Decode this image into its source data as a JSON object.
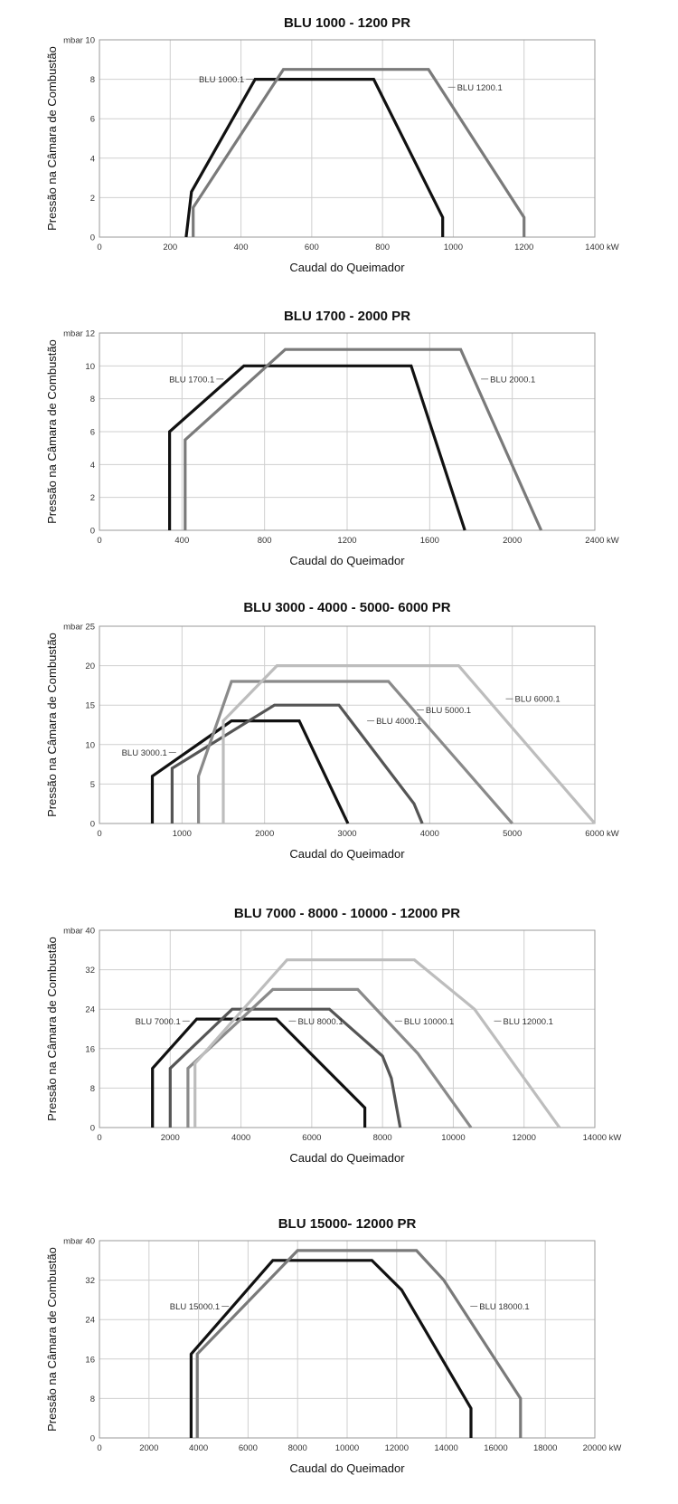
{
  "chart_data": [
    {
      "type": "line",
      "title": "BLU 1000 - 1200 PR",
      "xlabel": "Caudal do Queimador",
      "ylabel": "Pressão na Câmara de Combustão",
      "y_unit": "mbar",
      "x_unit": "kW",
      "xlim": [
        0,
        1400
      ],
      "ylim": [
        0,
        10
      ],
      "xticks": [
        0,
        200,
        400,
        600,
        800,
        1000,
        1200,
        1400
      ],
      "yticks": [
        0,
        2,
        4,
        6,
        8,
        10
      ],
      "grid": true,
      "series": [
        {
          "name": "BLU 1000.1",
          "color": "#111111",
          "label_side": "left",
          "label_at": [
            440,
            8
          ],
          "points": [
            [
              245,
              0
            ],
            [
              260,
              2.3
            ],
            [
              440,
              8
            ],
            [
              775,
              8
            ],
            [
              970,
              1
            ],
            [
              970,
              0
            ]
          ]
        },
        {
          "name": "BLU 1200.1",
          "color": "#7a7a7a",
          "label_side": "right",
          "label_at": [
            980,
            7.6
          ],
          "points": [
            [
              265,
              0
            ],
            [
              265,
              1.5
            ],
            [
              520,
              8.5
            ],
            [
              930,
              8.5
            ],
            [
              1200,
              1
            ],
            [
              1200,
              0
            ]
          ]
        }
      ]
    },
    {
      "type": "line",
      "title": "BLU 1700 - 2000 PR",
      "xlabel": "Caudal do Queimador",
      "ylabel": "Pressão na Câmara de Combustão",
      "y_unit": "mbar",
      "x_unit": "kW",
      "xlim": [
        0,
        2400
      ],
      "ylim": [
        0,
        12
      ],
      "xticks": [
        0,
        400,
        800,
        1200,
        1600,
        2000,
        2400
      ],
      "yticks": [
        0,
        2,
        4,
        6,
        8,
        10,
        12
      ],
      "grid": true,
      "series": [
        {
          "name": "BLU 1700.1",
          "color": "#111111",
          "label_side": "left",
          "label_at": [
            610,
            9.2
          ],
          "points": [
            [
              340,
              0
            ],
            [
              340,
              6
            ],
            [
              700,
              10
            ],
            [
              1510,
              10
            ],
            [
              1770,
              0
            ]
          ]
        },
        {
          "name": "BLU 2000.1",
          "color": "#7a7a7a",
          "label_side": "right",
          "label_at": [
            1840,
            9.2
          ],
          "points": [
            [
              415,
              0
            ],
            [
              415,
              5.5
            ],
            [
              900,
              11
            ],
            [
              1750,
              11
            ],
            [
              2140,
              0
            ]
          ]
        }
      ]
    },
    {
      "type": "line",
      "title": "BLU 3000 - 4000 - 5000- 6000 PR",
      "xlabel": "Caudal do Queimador",
      "ylabel": "Pressão na Câmara de Combustão",
      "y_unit": "mbar",
      "x_unit": "kW",
      "xlim": [
        0,
        6000
      ],
      "ylim": [
        0,
        25
      ],
      "xticks": [
        0,
        1000,
        2000,
        3000,
        4000,
        5000,
        6000
      ],
      "yticks": [
        0,
        5,
        10,
        15,
        20,
        25
      ],
      "grid": true,
      "series": [
        {
          "name": "BLU 3000.1",
          "color": "#111111",
          "label_side": "left",
          "label_at": [
            950,
            9
          ],
          "points": [
            [
              640,
              0
            ],
            [
              640,
              6
            ],
            [
              1600,
              13
            ],
            [
              2420,
              13
            ],
            [
              3010,
              0
            ]
          ]
        },
        {
          "name": "BLU 4000.1",
          "color": "#555555",
          "label_side": "right",
          "label_at": [
            3220,
            13
          ],
          "points": [
            [
              880,
              0
            ],
            [
              880,
              7
            ],
            [
              2120,
              15
            ],
            [
              2900,
              15
            ],
            [
              3810,
              2.5
            ],
            [
              3910,
              0
            ]
          ]
        },
        {
          "name": "BLU 5000.1",
          "color": "#8a8a8a",
          "label_side": "right",
          "label_at": [
            3820,
            14.4
          ],
          "points": [
            [
              1200,
              0
            ],
            [
              1200,
              6
            ],
            [
              1600,
              18
            ],
            [
              3500,
              18
            ],
            [
              5000,
              0
            ]
          ]
        },
        {
          "name": "BLU 6000.1",
          "color": "#bdbdbd",
          "label_side": "right",
          "label_at": [
            4900,
            15.8
          ],
          "points": [
            [
              1500,
              0
            ],
            [
              1500,
              13
            ],
            [
              2150,
              20
            ],
            [
              4350,
              20
            ],
            [
              6000,
              0
            ]
          ]
        }
      ]
    },
    {
      "type": "line",
      "title": "BLU 7000 - 8000 - 10000 - 12000 PR",
      "xlabel": "Caudal do Queimador",
      "ylabel": "Pressão na Câmara de Combustão",
      "y_unit": "mbar",
      "x_unit": "kW",
      "xlim": [
        0,
        14000
      ],
      "ylim": [
        0,
        40
      ],
      "xticks": [
        0,
        2000,
        4000,
        6000,
        8000,
        10000,
        12000,
        14000
      ],
      "yticks": [
        0,
        8,
        16,
        24,
        32,
        40
      ],
      "grid": true,
      "series": [
        {
          "name": "BLU 7000.1",
          "color": "#111111",
          "label_side": "left",
          "label_at": [
            2600,
            21.6
          ],
          "points": [
            [
              1500,
              0
            ],
            [
              1500,
              12
            ],
            [
              2750,
              22
            ],
            [
              5000,
              22
            ],
            [
              7500,
              4
            ],
            [
              7500,
              0
            ]
          ]
        },
        {
          "name": "BLU 8000.1",
          "color": "#555555",
          "label_side": "right",
          "label_at": [
            5300,
            21.6
          ],
          "points": [
            [
              2000,
              0
            ],
            [
              2000,
              12
            ],
            [
              3750,
              24
            ],
            [
              6500,
              24
            ],
            [
              8000,
              14.5
            ],
            [
              8250,
              10
            ],
            [
              8500,
              0
            ]
          ]
        },
        {
          "name": "BLU 10000.1",
          "color": "#8a8a8a",
          "label_side": "right",
          "label_at": [
            8300,
            21.6
          ],
          "points": [
            [
              2500,
              0
            ],
            [
              2500,
              12
            ],
            [
              4900,
              28
            ],
            [
              7300,
              28
            ],
            [
              9000,
              15
            ],
            [
              10500,
              0
            ]
          ]
        },
        {
          "name": "BLU 12000.1",
          "color": "#bdbdbd",
          "label_side": "right",
          "label_at": [
            11100,
            21.6
          ],
          "points": [
            [
              2700,
              0
            ],
            [
              2700,
              13
            ],
            [
              5300,
              34
            ],
            [
              8900,
              34
            ],
            [
              10600,
              24
            ],
            [
              13000,
              0
            ]
          ]
        }
      ]
    },
    {
      "type": "line",
      "title": "BLU 15000- 12000 PR",
      "xlabel": "Caudal do Queimador",
      "ylabel": "Pressão na Câmara de Combustão",
      "y_unit": "mbar",
      "x_unit": "kW",
      "xlim": [
        0,
        20000
      ],
      "ylim": [
        0,
        40
      ],
      "xticks": [
        0,
        2000,
        4000,
        6000,
        8000,
        10000,
        12000,
        14000,
        16000,
        18000,
        20000
      ],
      "yticks": [
        0,
        8,
        16,
        24,
        32,
        40
      ],
      "grid": true,
      "series": [
        {
          "name": "BLU 15000.1",
          "color": "#111111",
          "label_side": "left",
          "label_at": [
            5300,
            26.7
          ],
          "points": [
            [
              3700,
              0
            ],
            [
              3700,
              17
            ],
            [
              7000,
              36
            ],
            [
              11000,
              36
            ],
            [
              12200,
              30
            ],
            [
              15000,
              6
            ],
            [
              15000,
              0
            ]
          ]
        },
        {
          "name": "BLU 18000.1",
          "color": "#7a7a7a",
          "label_side": "right",
          "label_at": [
            14900,
            26.7
          ],
          "points": [
            [
              3950,
              0
            ],
            [
              3950,
              17
            ],
            [
              8000,
              38
            ],
            [
              12800,
              38
            ],
            [
              13900,
              32
            ],
            [
              17000,
              8
            ],
            [
              17000,
              0
            ]
          ]
        }
      ]
    }
  ]
}
